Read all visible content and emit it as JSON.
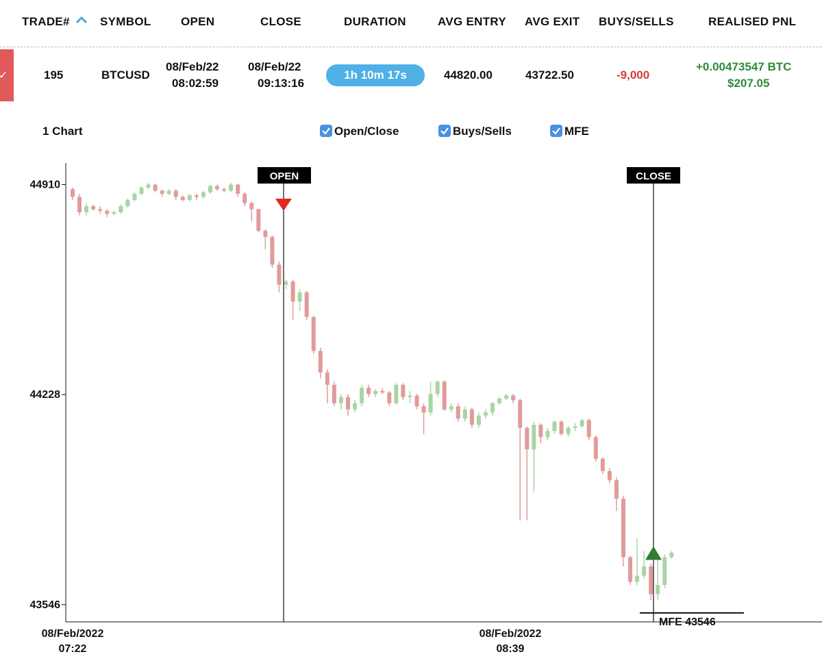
{
  "table": {
    "columns": [
      "TRADE#",
      "SYMBOL",
      "OPEN",
      "CLOSE",
      "DURATION",
      "AVG ENTRY",
      "AVG EXIT",
      "BUYS/SELLS",
      "REALISED PNL"
    ],
    "row": {
      "trade": "195",
      "symbol": "BTCUSD",
      "open_date": "08/Feb/22",
      "open_time": "08:02:59",
      "close_date": "08/Feb/22",
      "close_time": "09:13:16",
      "duration": "1h 10m 17s",
      "avg_entry": "44820.00",
      "avg_exit": "43722.50",
      "buys_sells": "-9,000",
      "pnl_btc": "+0.00473547 BTC",
      "pnl_usd": "$207.05"
    }
  },
  "toolbar": {
    "chart_label": "1 Chart",
    "open_close": "Open/Close",
    "buys_sells": "Buys/Sells",
    "mfe": "MFE",
    "open_close_checked": true,
    "buys_sells_checked": true,
    "mfe_checked": true
  },
  "colors": {
    "up": "#a9d4a4",
    "down": "#e29a9a",
    "open_marker": "#e02a1f",
    "close_marker": "#2e7d32",
    "accent": "#4fb0e6"
  },
  "chart_data": {
    "type": "candlestick",
    "y_ticks": [
      44910,
      44228,
      43546
    ],
    "x_ticks": [
      {
        "date": "08/Feb/2022",
        "time": "07:22"
      },
      {
        "date": "08/Feb/2022",
        "time": "08:39"
      }
    ],
    "annotations": {
      "open_label": "OPEN",
      "close_label": "CLOSE",
      "mfe_label": "MFE 43546",
      "open_time": "08:02:59",
      "close_time": "09:13:16",
      "mfe_value": 43546
    },
    "ylim": [
      43490,
      44980
    ],
    "candles": [
      [
        44895,
        44870,
        44900,
        44860
      ],
      [
        44870,
        44820,
        44880,
        44810
      ],
      [
        44820,
        44840,
        44850,
        44810
      ],
      [
        44840,
        44830,
        44845,
        44825
      ],
      [
        44830,
        44825,
        44840,
        44815
      ],
      [
        44825,
        44815,
        44830,
        44805
      ],
      [
        44815,
        44820,
        44825,
        44810
      ],
      [
        44820,
        44840,
        44845,
        44815
      ],
      [
        44840,
        44860,
        44865,
        44835
      ],
      [
        44860,
        44880,
        44885,
        44855
      ],
      [
        44880,
        44900,
        44905,
        44875
      ],
      [
        44900,
        44910,
        44915,
        44895
      ],
      [
        44910,
        44890,
        44912,
        44885
      ],
      [
        44890,
        44880,
        44895,
        44870
      ],
      [
        44880,
        44890,
        44895,
        44875
      ],
      [
        44890,
        44870,
        44895,
        44860
      ],
      [
        44870,
        44860,
        44875,
        44855
      ],
      [
        44860,
        44875,
        44880,
        44855
      ],
      [
        44875,
        44870,
        44880,
        44860
      ],
      [
        44870,
        44885,
        44890,
        44865
      ],
      [
        44885,
        44905,
        44910,
        44880
      ],
      [
        44905,
        44895,
        44910,
        44890
      ],
      [
        44895,
        44890,
        44900,
        44885
      ],
      [
        44890,
        44910,
        44915,
        44885
      ],
      [
        44910,
        44880,
        44912,
        44870
      ],
      [
        44880,
        44850,
        44885,
        44840
      ],
      [
        44850,
        44830,
        44855,
        44790
      ],
      [
        44830,
        44760,
        44832,
        44755
      ],
      [
        44760,
        44740,
        44765,
        44700
      ],
      [
        44740,
        44650,
        44745,
        44640
      ],
      [
        44650,
        44585,
        44660,
        44560
      ],
      [
        44585,
        44595,
        44600,
        44570
      ],
      [
        44595,
        44530,
        44600,
        44470
      ],
      [
        44530,
        44560,
        44570,
        44500
      ],
      [
        44560,
        44480,
        44565,
        44470
      ],
      [
        44480,
        44370,
        44485,
        44360
      ],
      [
        44370,
        44300,
        44380,
        44280
      ],
      [
        44300,
        44260,
        44310,
        44200
      ],
      [
        44260,
        44200,
        44270,
        44190
      ],
      [
        44200,
        44220,
        44230,
        44180
      ],
      [
        44220,
        44180,
        44230,
        44160
      ],
      [
        44180,
        44200,
        44210,
        44170
      ],
      [
        44200,
        44250,
        44260,
        44190
      ],
      [
        44250,
        44230,
        44260,
        44220
      ],
      [
        44230,
        44240,
        44245,
        44220
      ],
      [
        44240,
        44235,
        44250,
        44230
      ],
      [
        44235,
        44200,
        44240,
        44190
      ],
      [
        44200,
        44260,
        44265,
        44195
      ],
      [
        44260,
        44220,
        44265,
        44210
      ],
      [
        44220,
        44225,
        44240,
        44200
      ],
      [
        44225,
        44190,
        44230,
        44180
      ],
      [
        44190,
        44170,
        44200,
        44100
      ],
      [
        44170,
        44230,
        44270,
        44160
      ],
      [
        44230,
        44270,
        44275,
        44220
      ],
      [
        44270,
        44180,
        44275,
        44175
      ],
      [
        44180,
        44190,
        44200,
        44170
      ],
      [
        44190,
        44150,
        44200,
        44140
      ],
      [
        44150,
        44180,
        44190,
        44140
      ],
      [
        44180,
        44130,
        44185,
        44120
      ],
      [
        44130,
        44160,
        44170,
        44120
      ],
      [
        44160,
        44170,
        44180,
        44150
      ],
      [
        44170,
        44200,
        44205,
        44160
      ],
      [
        44200,
        44215,
        44220,
        44195
      ],
      [
        44215,
        44225,
        44230,
        44210
      ],
      [
        44225,
        44210,
        44230,
        44200
      ],
      [
        44210,
        44120,
        44215,
        43820
      ],
      [
        44120,
        44050,
        44125,
        43820
      ],
      [
        44050,
        44130,
        44140,
        43910
      ],
      [
        44130,
        44090,
        44135,
        44070
      ],
      [
        44090,
        44110,
        44120,
        44080
      ],
      [
        44110,
        44140,
        44145,
        44100
      ],
      [
        44140,
        44100,
        44145,
        44095
      ],
      [
        44100,
        44120,
        44125,
        44090
      ],
      [
        44120,
        44125,
        44135,
        44110
      ],
      [
        44125,
        44145,
        44150,
        44120
      ],
      [
        44145,
        44090,
        44150,
        44080
      ],
      [
        44090,
        44020,
        44095,
        44010
      ],
      [
        44020,
        43980,
        44025,
        43970
      ],
      [
        43980,
        43950,
        43990,
        43940
      ],
      [
        43950,
        43890,
        43960,
        43850
      ],
      [
        43890,
        43700,
        43900,
        43670
      ],
      [
        43700,
        43620,
        43705,
        43610
      ],
      [
        43620,
        43640,
        43760,
        43610
      ],
      [
        43640,
        43670,
        43720,
        43630
      ],
      [
        43670,
        43580,
        43680,
        43560
      ],
      [
        43580,
        43610,
        43700,
        43560
      ],
      [
        43610,
        43700,
        43710,
        43600
      ],
      [
        43700,
        43715,
        43720,
        43695
      ]
    ]
  }
}
